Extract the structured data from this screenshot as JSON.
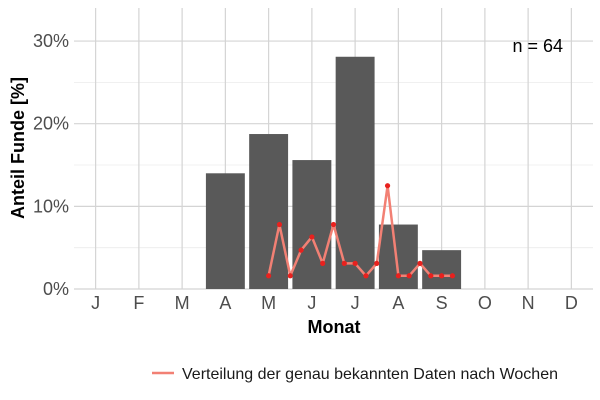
{
  "chart_data": {
    "type": "bar",
    "xlabel": "Monat",
    "ylabel": "Anteil Funde [%]",
    "annotation": "n = 64",
    "categories": [
      "J",
      "F",
      "M",
      "A",
      "M",
      "J",
      "J",
      "A",
      "S",
      "O",
      "N",
      "D"
    ],
    "y_ticks": [
      "0%",
      "10%",
      "20%",
      "30%"
    ],
    "ylim": [
      0,
      34
    ],
    "grid": true,
    "legend_position": "bottom",
    "series": [
      {
        "type": "bar",
        "values": [
          0,
          0,
          0,
          14,
          18.75,
          15.6,
          28.1,
          7.8,
          4.7,
          0,
          0,
          0
        ],
        "color": "#595959"
      },
      {
        "type": "line",
        "name": "Verteilung der genau bekannten Daten nach Wochen",
        "color": "#f28074",
        "point_color": "#e8211e",
        "x": [
          4.0,
          4.25,
          4.5,
          4.75,
          5.0,
          5.25,
          5.5,
          5.75,
          6.0,
          6.25,
          6.5,
          6.75,
          7.0,
          7.25,
          7.5,
          7.75,
          8.0,
          8.25,
          8.5,
          8.75
        ],
        "values": [
          1.6,
          7.8,
          1.6,
          4.7,
          6.3,
          3.1,
          7.8,
          3.1,
          3.1,
          1.6,
          3.1,
          12.5,
          1.6,
          1.6,
          3.1,
          1.6,
          1.6,
          1.6,
          0,
          0
        ]
      }
    ]
  }
}
